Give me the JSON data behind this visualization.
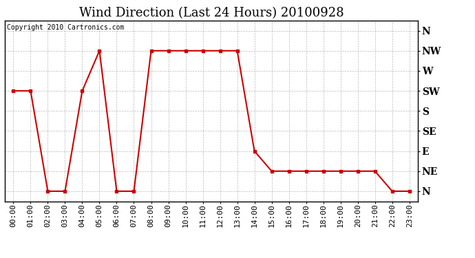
{
  "title": "Wind Direction (Last 24 Hours) 20100928",
  "copyright_text": "Copyright 2010 Cartronics.com",
  "x_labels": [
    "00:00",
    "01:00",
    "02:00",
    "03:00",
    "04:00",
    "05:00",
    "06:00",
    "07:00",
    "08:00",
    "09:00",
    "10:00",
    "11:00",
    "12:00",
    "13:00",
    "14:00",
    "15:00",
    "16:00",
    "17:00",
    "18:00",
    "19:00",
    "20:00",
    "21:00",
    "22:00",
    "23:00"
  ],
  "y_tick_labels": [
    "N",
    "NE",
    "E",
    "SE",
    "S",
    "SW",
    "W",
    "NW",
    "N"
  ],
  "y_tick_values": [
    0,
    1,
    2,
    3,
    4,
    5,
    6,
    7,
    8
  ],
  "data_values": [
    5,
    5,
    0,
    0,
    5,
    7,
    0,
    0,
    7,
    7,
    7,
    7,
    7,
    7,
    2,
    1,
    1,
    1,
    1,
    1,
    1,
    1,
    0,
    0
  ],
  "line_color": "#cc0000",
  "marker": "s",
  "marker_size": 3,
  "background_color": "#ffffff",
  "grid_color": "#aaaaaa",
  "title_fontsize": 13,
  "axis_label_fontsize": 8,
  "copyright_fontsize": 7
}
